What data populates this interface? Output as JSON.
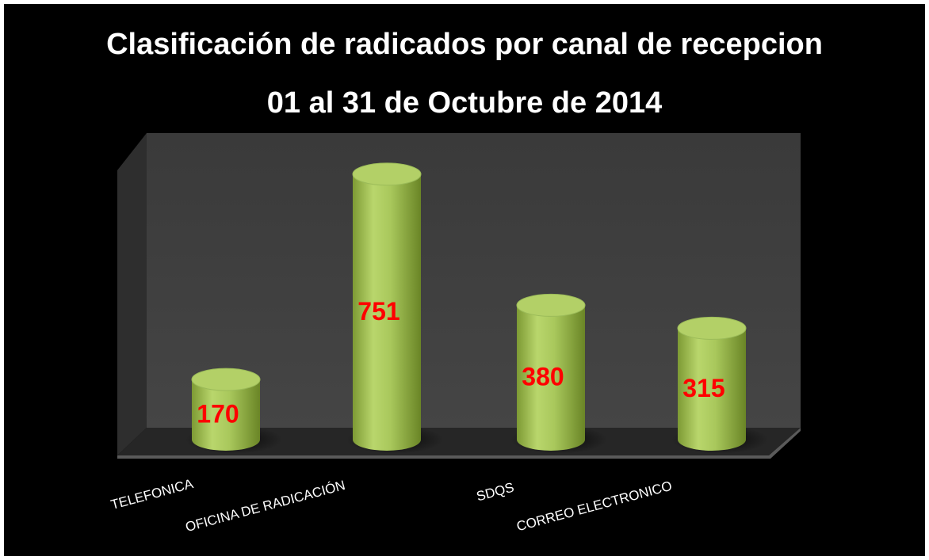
{
  "chart_data": {
    "type": "cylinder",
    "title": "Clasificación de radicados por canal de recepcion",
    "subtitle": "01 al 31 de Octubre de  2014",
    "categories": [
      "TELEFONICA",
      "OFICINA DE RADICACIÓN",
      "SDQS",
      "CORREO ELECTRONICO"
    ],
    "values": [
      170,
      751,
      380,
      315
    ],
    "color": "#9bbb59",
    "ylim": [
      0,
      800
    ]
  }
}
